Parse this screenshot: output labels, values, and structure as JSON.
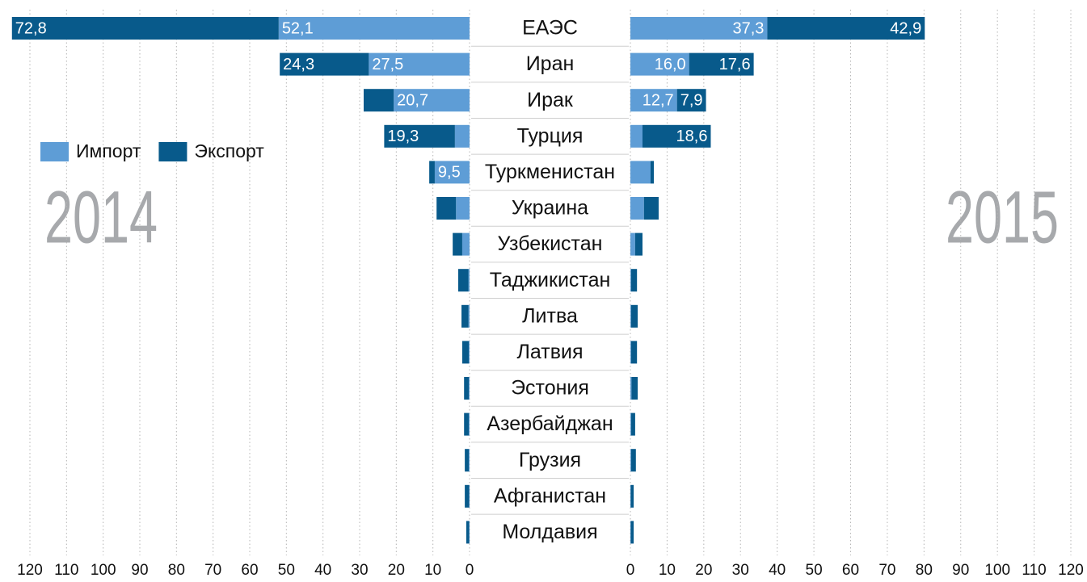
{
  "chart_data": {
    "type": "bar",
    "orientation": "horizontal",
    "stacked": true,
    "categories": [
      "ЕАЭС",
      "Иран",
      "Ирак",
      "Турция",
      "Туркменистан",
      "Украина",
      "Узбекистан",
      "Таджикистан",
      "Литва",
      "Латвия",
      "Эстония",
      "Азербайджан",
      "Грузия",
      "Афганистан",
      "Молдавия"
    ],
    "series": [
      {
        "name": "Импорт",
        "color": "#5e9dd6"
      },
      {
        "name": "Экспорт",
        "color": "#085a8b"
      }
    ],
    "xlim": [
      0,
      120
    ],
    "xticks": [
      0,
      10,
      20,
      30,
      40,
      50,
      60,
      70,
      80,
      90,
      100,
      110,
      120
    ],
    "grid": true,
    "panels": [
      {
        "title": "2014",
        "direction": "left",
        "values": [
          [
            52.1,
            27.5,
            20.7,
            4.0,
            9.5,
            3.7,
            2.0,
            0.3,
            0.3,
            0.2,
            0.2,
            0.2,
            0.2,
            0.1,
            0.1
          ],
          [
            72.8,
            24.3,
            8.2,
            19.3,
            1.5,
            5.3,
            2.6,
            2.8,
            1.9,
            1.8,
            1.3,
            1.3,
            1.1,
            1.2,
            0.8
          ]
        ],
        "value_labels": [
          [
            "52,1",
            "27,5",
            "20,7",
            null,
            "9,5",
            null,
            null,
            null,
            null,
            null,
            null,
            null,
            null,
            null,
            null
          ],
          [
            "72,8",
            "24,3",
            null,
            "19,3",
            null,
            null,
            null,
            null,
            null,
            null,
            null,
            null,
            null,
            null,
            null
          ]
        ]
      },
      {
        "title": "2015",
        "direction": "right",
        "values": [
          [
            37.3,
            16.0,
            12.7,
            3.3,
            5.5,
            3.7,
            1.3,
            0.2,
            0.2,
            0.2,
            0.3,
            0.2,
            0.2,
            0.1,
            0.1
          ],
          [
            42.9,
            17.6,
            7.9,
            18.6,
            0.9,
            4.0,
            2.0,
            1.6,
            1.8,
            1.6,
            1.7,
            1.1,
            1.3,
            0.8,
            0.8
          ]
        ],
        "value_labels": [
          [
            "37,3",
            "16,0",
            "12,7",
            null,
            null,
            null,
            null,
            null,
            null,
            null,
            null,
            null,
            null,
            null,
            null
          ],
          [
            "42,9",
            "17,6",
            "7,9",
            "18,6",
            null,
            null,
            null,
            null,
            null,
            null,
            null,
            null,
            null,
            null,
            null
          ]
        ]
      }
    ]
  }
}
